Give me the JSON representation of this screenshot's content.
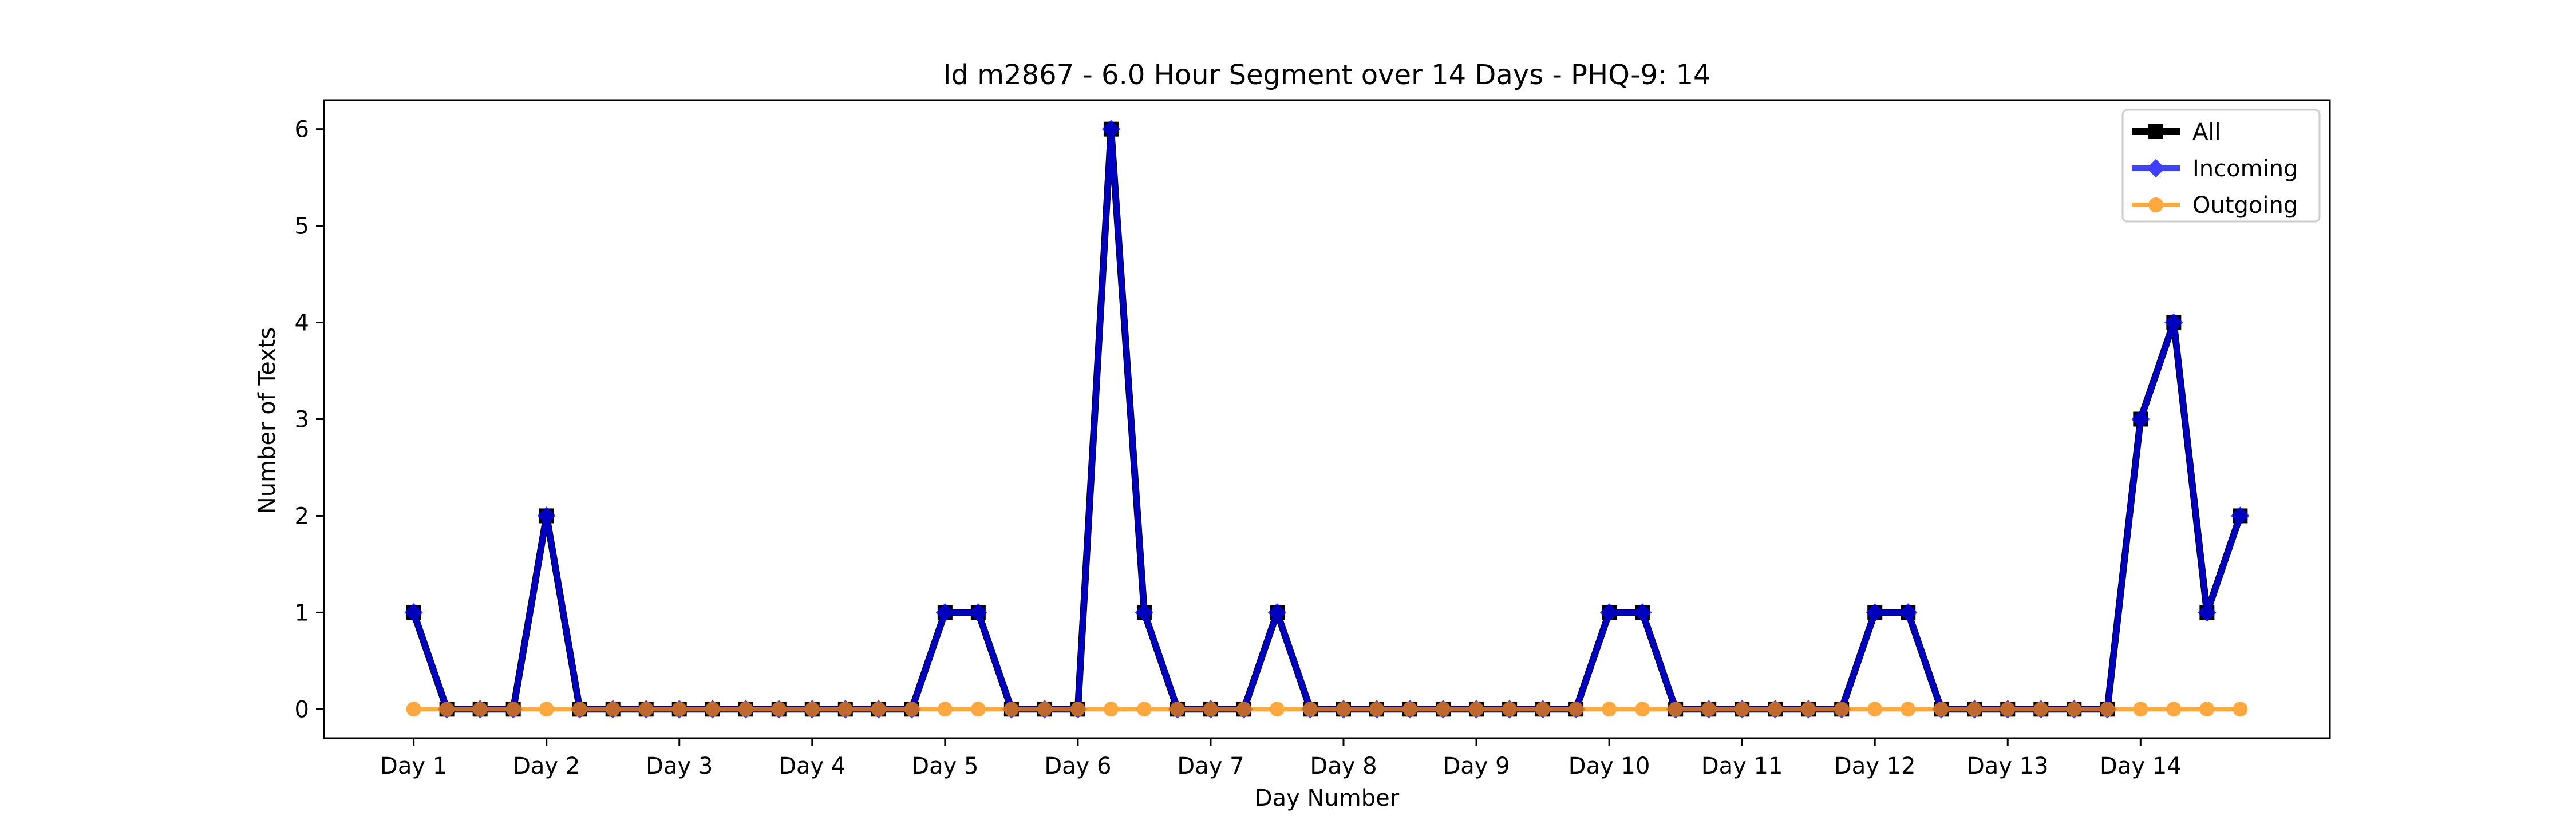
{
  "chart_data": {
    "type": "line",
    "title": "Id m2867 - 6.0 Hour Segment over 14 Days - PHQ-9: 14",
    "xlabel": "Day Number",
    "ylabel": "Number of Texts",
    "xtick_labels": [
      "Day 1",
      "Day 2",
      "Day 3",
      "Day 4",
      "Day 5",
      "Day 6",
      "Day 7",
      "Day 8",
      "Day 9",
      "Day 10",
      "Day 11",
      "Day 12",
      "Day 13",
      "Day 14"
    ],
    "xtick_positions": [
      0,
      4,
      8,
      12,
      16,
      20,
      24,
      28,
      32,
      36,
      40,
      44,
      48,
      52
    ],
    "x": [
      0,
      1,
      2,
      3,
      4,
      5,
      6,
      7,
      8,
      9,
      10,
      11,
      12,
      13,
      14,
      15,
      16,
      17,
      18,
      19,
      20,
      21,
      22,
      23,
      24,
      25,
      26,
      27,
      28,
      29,
      30,
      31,
      32,
      33,
      34,
      35,
      36,
      37,
      38,
      39,
      40,
      41,
      42,
      43,
      44,
      45,
      46,
      47,
      48,
      49,
      50,
      51,
      52,
      53,
      54,
      55
    ],
    "yticks": [
      0,
      1,
      2,
      3,
      4,
      5,
      6
    ],
    "ylim": [
      -0.3,
      6.3
    ],
    "xlim": [
      -2.7,
      57.7
    ],
    "grid": false,
    "legend_position": "top-right",
    "series": [
      {
        "name": "All",
        "color": "#000000",
        "marker": "square",
        "values": [
          1,
          0,
          0,
          0,
          2,
          0,
          0,
          0,
          0,
          0,
          0,
          0,
          0,
          0,
          0,
          0,
          1,
          1,
          0,
          0,
          0,
          6,
          1,
          0,
          0,
          0,
          1,
          0,
          0,
          0,
          0,
          0,
          0,
          0,
          0,
          0,
          1,
          1,
          0,
          0,
          0,
          0,
          0,
          0,
          1,
          1,
          0,
          0,
          0,
          0,
          0,
          0,
          3,
          4,
          1,
          2
        ]
      },
      {
        "name": "Incoming",
        "color": "#0000ff",
        "marker": "diamond",
        "values": [
          1,
          0,
          0,
          0,
          2,
          0,
          0,
          0,
          0,
          0,
          0,
          0,
          0,
          0,
          0,
          0,
          1,
          1,
          0,
          0,
          0,
          6,
          1,
          0,
          0,
          0,
          1,
          0,
          0,
          0,
          0,
          0,
          0,
          0,
          0,
          0,
          1,
          1,
          0,
          0,
          0,
          0,
          0,
          0,
          1,
          1,
          0,
          0,
          0,
          0,
          0,
          0,
          3,
          4,
          1,
          2
        ]
      },
      {
        "name": "Outgoing",
        "color": "#ff8c00",
        "marker": "circle",
        "values": [
          0,
          0,
          0,
          0,
          0,
          0,
          0,
          0,
          0,
          0,
          0,
          0,
          0,
          0,
          0,
          0,
          0,
          0,
          0,
          0,
          0,
          0,
          0,
          0,
          0,
          0,
          0,
          0,
          0,
          0,
          0,
          0,
          0,
          0,
          0,
          0,
          0,
          0,
          0,
          0,
          0,
          0,
          0,
          0,
          0,
          0,
          0,
          0,
          0,
          0,
          0,
          0,
          0,
          0,
          0,
          0
        ]
      }
    ]
  }
}
